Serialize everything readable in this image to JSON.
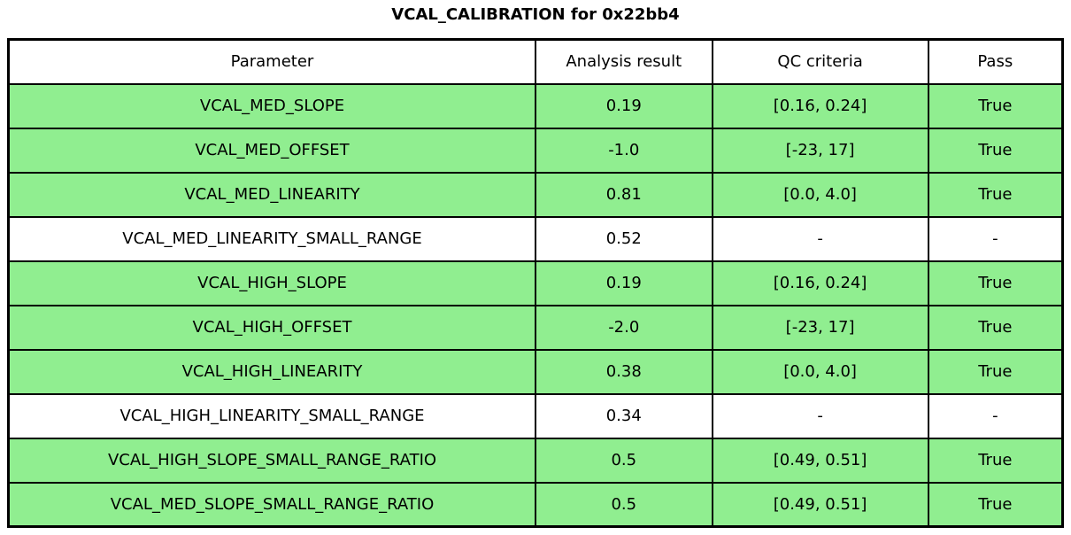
{
  "title": "VCAL_CALIBRATION for 0x22bb4",
  "colors": {
    "pass_row_green": "#90EE90",
    "neutral_row_white": "#FFFFFF",
    "border_black": "#000000",
    "text_black": "#000000"
  },
  "chart_data": {
    "type": "table",
    "title": "VCAL_CALIBRATION for 0x22bb4",
    "columns": [
      "Parameter",
      "Analysis result",
      "QC criteria",
      "Pass"
    ],
    "rows": [
      [
        "VCAL_MED_SLOPE",
        "0.19",
        "[0.16, 0.24]",
        "True"
      ],
      [
        "VCAL_MED_OFFSET",
        "-1.0",
        "[-23, 17]",
        "True"
      ],
      [
        "VCAL_MED_LINEARITY",
        "0.81",
        "[0.0, 4.0]",
        "True"
      ],
      [
        "VCAL_MED_LINEARITY_SMALL_RANGE",
        "0.52",
        "-",
        "-"
      ],
      [
        "VCAL_HIGH_SLOPE",
        "0.19",
        "[0.16, 0.24]",
        "True"
      ],
      [
        "VCAL_HIGH_OFFSET",
        "-2.0",
        "[-23, 17]",
        "True"
      ],
      [
        "VCAL_HIGH_LINEARITY",
        "0.38",
        "[0.0, 4.0]",
        "True"
      ],
      [
        "VCAL_HIGH_LINEARITY_SMALL_RANGE",
        "0.34",
        "-",
        "-"
      ],
      [
        "VCAL_HIGH_SLOPE_SMALL_RANGE_RATIO",
        "0.5",
        "[0.49, 0.51]",
        "True"
      ],
      [
        "VCAL_MED_SLOPE_SMALL_RANGE_RATIO",
        "0.5",
        "[0.49, 0.51]",
        "True"
      ]
    ],
    "row_colors": [
      "#90EE90",
      "#90EE90",
      "#90EE90",
      "#FFFFFF",
      "#90EE90",
      "#90EE90",
      "#90EE90",
      "#FFFFFF",
      "#90EE90",
      "#90EE90"
    ],
    "header_color": "#FFFFFF",
    "legend_position": "none",
    "grid": true
  }
}
